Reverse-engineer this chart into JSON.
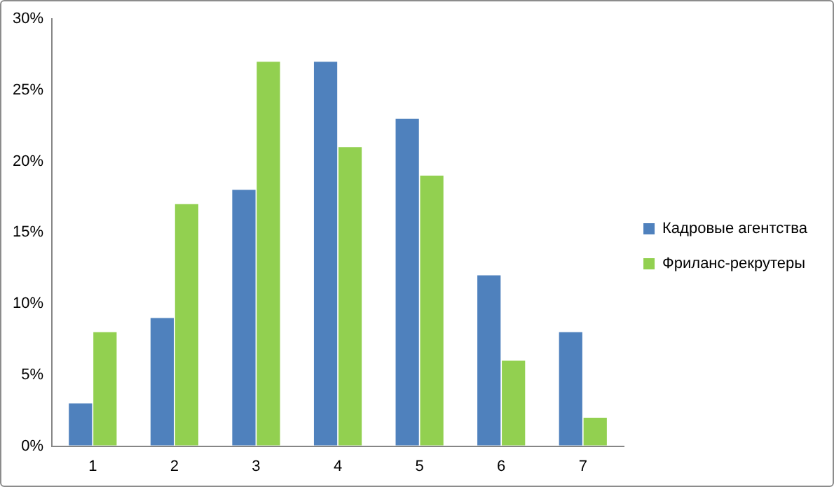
{
  "chart_data": {
    "type": "bar",
    "categories": [
      "1",
      "2",
      "3",
      "4",
      "5",
      "6",
      "7"
    ],
    "series": [
      {
        "name": "Кадровые агентства",
        "color": "#4f81bd",
        "values": [
          3,
          9,
          18,
          27,
          23,
          12,
          8
        ]
      },
      {
        "name": "Фриланс-рекрутеры",
        "color": "#92d050",
        "values": [
          8,
          17,
          27,
          21,
          19,
          6,
          2
        ]
      }
    ],
    "ylim": [
      0,
      30
    ],
    "yticks": [
      {
        "value": 0,
        "label": "0%"
      },
      {
        "value": 5,
        "label": "5%"
      },
      {
        "value": 10,
        "label": "10%"
      },
      {
        "value": 15,
        "label": "15%"
      },
      {
        "value": 20,
        "label": "20%"
      },
      {
        "value": 25,
        "label": "25%"
      },
      {
        "value": 30,
        "label": "30%"
      }
    ],
    "grid": false,
    "legend": "right"
  }
}
